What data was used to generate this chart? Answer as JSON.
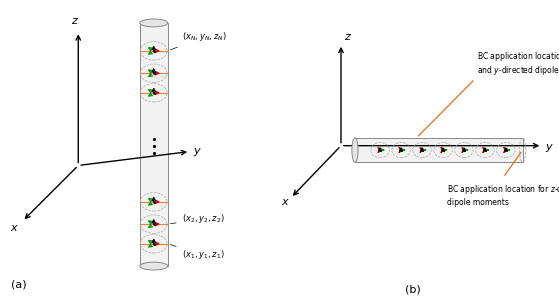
{
  "fig_width": 5.59,
  "fig_height": 3.03,
  "dpi": 100,
  "background": "#ffffff",
  "label_a": "(a)",
  "label_b": "(b)",
  "arrow_green": "#009900",
  "arrow_red": "#cc0000",
  "arrow_black": "#000000",
  "orange_line": "#e07020",
  "rod_face": "#f2f2f2",
  "rod_edge": "#888888",
  "ellipse_dash": "#aaaaaa"
}
